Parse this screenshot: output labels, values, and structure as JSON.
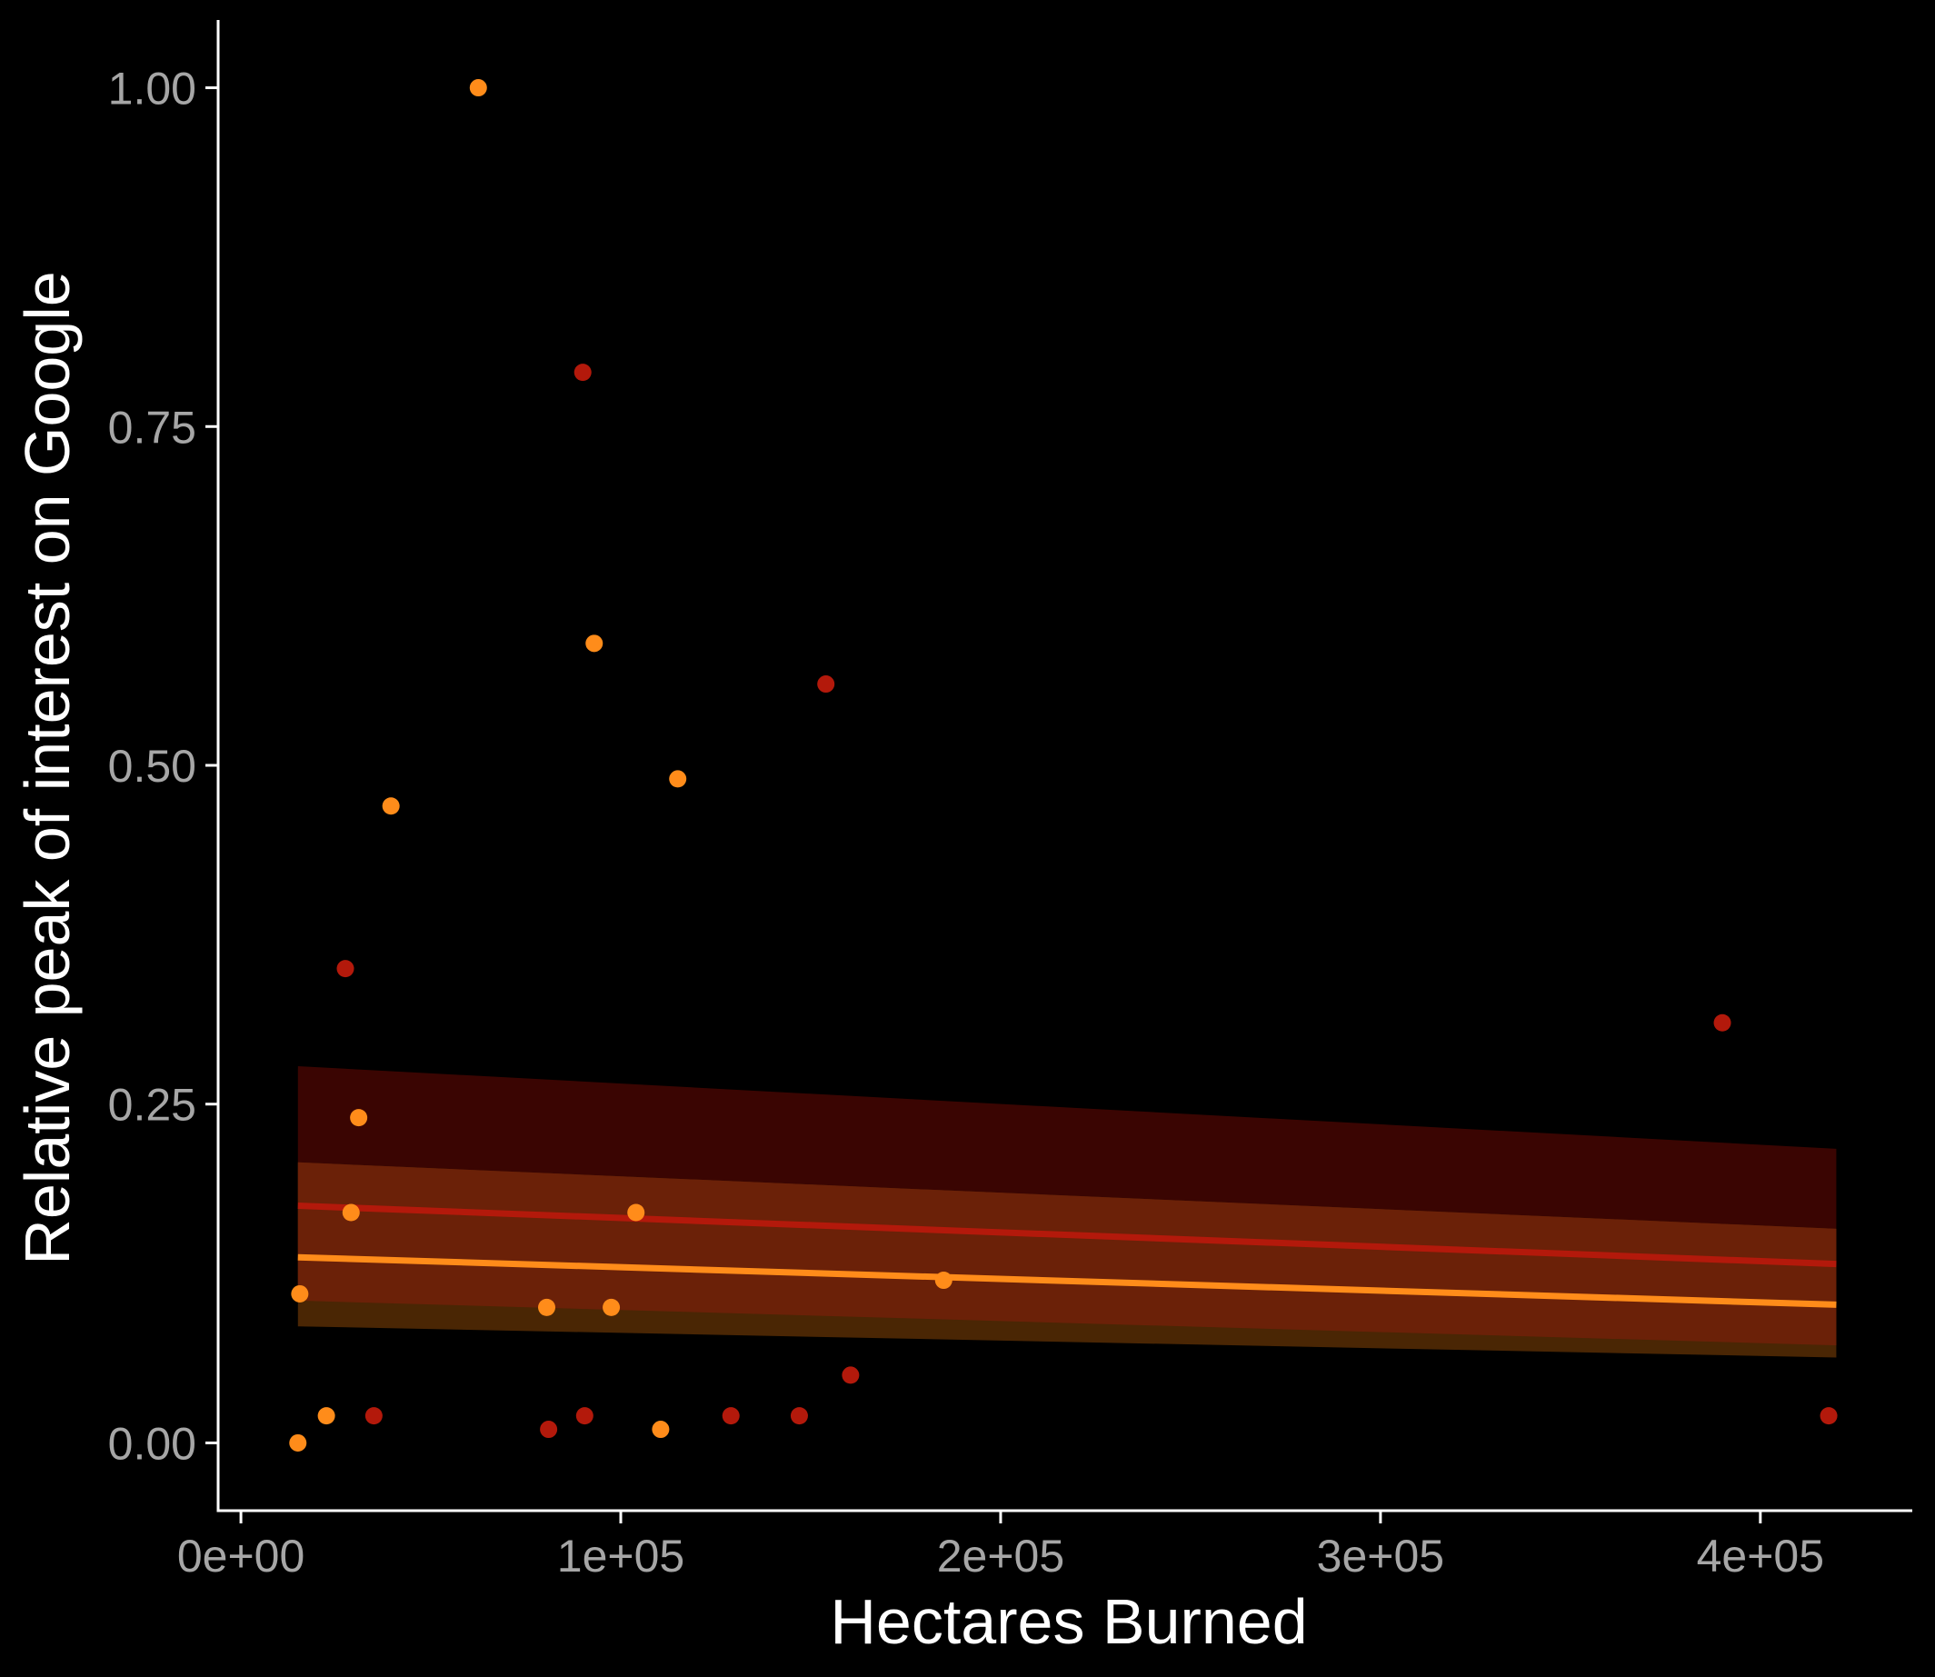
{
  "chart_data": {
    "type": "scatter",
    "xlabel": "Hectares Burned",
    "ylabel": "Relative peak of interest on Google",
    "xlim": [
      -6000,
      440000
    ],
    "ylim": [
      -0.05,
      1.05
    ],
    "x_ticks": [
      {
        "value": 0,
        "label": "0e+00"
      },
      {
        "value": 100000,
        "label": "1e+05"
      },
      {
        "value": 200000,
        "label": "2e+05"
      },
      {
        "value": 300000,
        "label": "3e+05"
      },
      {
        "value": 400000,
        "label": "4e+05"
      }
    ],
    "y_ticks": [
      {
        "value": 0,
        "label": "0.00"
      },
      {
        "value": 0.25,
        "label": "0.25"
      },
      {
        "value": 0.5,
        "label": "0.50"
      },
      {
        "value": 0.75,
        "label": "0.75"
      },
      {
        "value": 1.0,
        "label": "1.00"
      }
    ],
    "grid": false,
    "legend": "none",
    "colors": {
      "background": "#000000",
      "axis": "#ffffff",
      "tick_label": "#a6a6a6",
      "series_red": "#b3190b",
      "series_orange": "#ff8c1a",
      "band_red": "#3a0502",
      "band_orange": "#6b2108",
      "band_overlap_low": "#4a2604"
    },
    "series": [
      {
        "color": "#b3190b",
        "points": [
          {
            "x": 27500,
            "y": 0.35
          },
          {
            "x": 35000,
            "y": 0.02
          },
          {
            "x": 81000,
            "y": 0.01
          },
          {
            "x": 90000,
            "y": 0.79
          },
          {
            "x": 90500,
            "y": 0.02
          },
          {
            "x": 129000,
            "y": 0.02
          },
          {
            "x": 147000,
            "y": 0.02
          },
          {
            "x": 154000,
            "y": 0.56
          },
          {
            "x": 160500,
            "y": 0.05
          },
          {
            "x": 390000,
            "y": 0.31
          },
          {
            "x": 418000,
            "y": 0.02
          }
        ],
        "fit": {
          "x0": 15000,
          "y0": 0.175,
          "x1": 420000,
          "y1": 0.132
        },
        "band": {
          "lower0": 0.105,
          "upper0": 0.278,
          "lower1": 0.072,
          "upper1": 0.217
        }
      },
      {
        "color": "#ff8c1a",
        "points": [
          {
            "x": 15000,
            "y": 0.0
          },
          {
            "x": 15500,
            "y": 0.11
          },
          {
            "x": 22500,
            "y": 0.02
          },
          {
            "x": 29000,
            "y": 0.17
          },
          {
            "x": 31000,
            "y": 0.24
          },
          {
            "x": 39500,
            "y": 0.47
          },
          {
            "x": 62500,
            "y": 1.0
          },
          {
            "x": 80500,
            "y": 0.1
          },
          {
            "x": 93000,
            "y": 0.59
          },
          {
            "x": 97500,
            "y": 0.1
          },
          {
            "x": 104000,
            "y": 0.17
          },
          {
            "x": 110500,
            "y": 0.01
          },
          {
            "x": 115000,
            "y": 0.49
          },
          {
            "x": 185000,
            "y": 0.12
          }
        ],
        "fit": {
          "x0": 15000,
          "y0": 0.137,
          "x1": 420000,
          "y1": 0.102
        },
        "band": {
          "lower0": 0.086,
          "upper0": 0.207,
          "lower1": 0.063,
          "upper1": 0.158
        }
      }
    ]
  }
}
